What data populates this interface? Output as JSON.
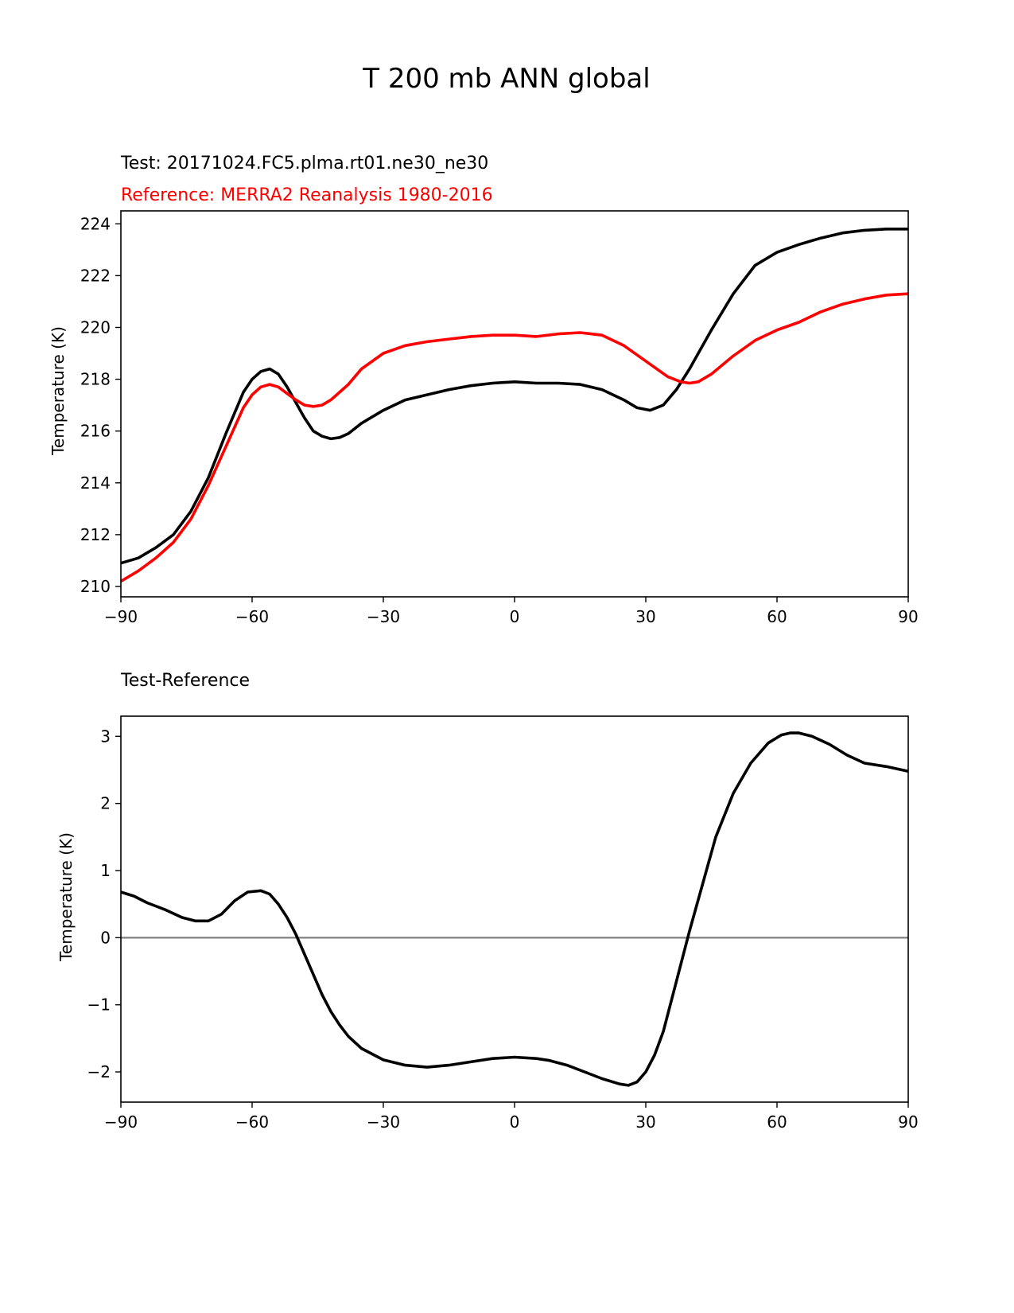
{
  "figure": {
    "suptitle": "T 200 mb ANN global"
  },
  "colors": {
    "test": "#000000",
    "reference": "#ff0000",
    "zero_line": "#808080"
  },
  "chart_data": [
    {
      "type": "line",
      "title_test": "Test: 20171024.FC5.plma.rt01.ne30_ne30",
      "title_reference": "Reference: MERRA2 Reanalysis 1980-2016",
      "xlabel": "",
      "ylabel": "Temperature (K)",
      "xlim": [
        -90,
        90
      ],
      "ylim": [
        209.6,
        224.5
      ],
      "xticks": [
        -90,
        -60,
        -30,
        0,
        30,
        60,
        90
      ],
      "xtick_labels": [
        "−90",
        "−60",
        "−30",
        "0",
        "30",
        "60",
        "90"
      ],
      "yticks": [
        210,
        212,
        214,
        216,
        218,
        220,
        222,
        224
      ],
      "ytick_labels": [
        "210",
        "212",
        "214",
        "216",
        "218",
        "220",
        "222",
        "224"
      ],
      "series": [
        {
          "name": "Test",
          "color": "#000000",
          "x": [
            -90,
            -86,
            -82,
            -78,
            -74,
            -70,
            -66,
            -62,
            -60,
            -58,
            -56,
            -54,
            -52,
            -50,
            -48,
            -46,
            -44,
            -42,
            -40,
            -38,
            -35,
            -30,
            -25,
            -20,
            -15,
            -10,
            -5,
            0,
            5,
            10,
            15,
            20,
            25,
            28,
            31,
            34,
            37,
            40,
            45,
            50,
            55,
            60,
            65,
            70,
            75,
            80,
            85,
            90
          ],
          "values": [
            210.9,
            211.1,
            211.5,
            212.0,
            212.9,
            214.2,
            215.9,
            217.5,
            218.0,
            218.3,
            218.4,
            218.2,
            217.7,
            217.1,
            216.5,
            216.0,
            215.8,
            215.7,
            215.75,
            215.9,
            216.3,
            216.8,
            217.2,
            217.4,
            217.6,
            217.75,
            217.85,
            217.9,
            217.85,
            217.85,
            217.8,
            217.6,
            217.2,
            216.9,
            216.8,
            217.0,
            217.6,
            218.4,
            219.9,
            221.3,
            222.4,
            222.9,
            223.2,
            223.45,
            223.65,
            223.75,
            223.8,
            223.8
          ]
        },
        {
          "name": "Reference",
          "color": "#ff0000",
          "x": [
            -90,
            -86,
            -82,
            -78,
            -74,
            -70,
            -66,
            -62,
            -60,
            -58,
            -56,
            -54,
            -52,
            -50,
            -48,
            -46,
            -44,
            -42,
            -40,
            -38,
            -35,
            -30,
            -25,
            -20,
            -15,
            -10,
            -5,
            0,
            5,
            10,
            15,
            20,
            25,
            30,
            35,
            38,
            40,
            42,
            45,
            50,
            55,
            60,
            65,
            70,
            75,
            80,
            85,
            90
          ],
          "values": [
            210.2,
            210.6,
            211.1,
            211.7,
            212.6,
            213.9,
            215.4,
            216.9,
            217.4,
            217.7,
            217.8,
            217.7,
            217.45,
            217.2,
            217.0,
            216.95,
            217.0,
            217.2,
            217.5,
            217.8,
            218.4,
            219.0,
            219.3,
            219.45,
            219.55,
            219.65,
            219.7,
            219.7,
            219.65,
            219.75,
            219.8,
            219.7,
            219.3,
            218.7,
            218.1,
            217.9,
            217.85,
            217.9,
            218.2,
            218.9,
            219.5,
            219.9,
            220.2,
            220.6,
            220.9,
            221.1,
            221.25,
            221.3
          ]
        }
      ]
    },
    {
      "type": "line",
      "title": "Test-Reference",
      "xlabel": "",
      "ylabel": "Temperature (K)",
      "xlim": [
        -90,
        90
      ],
      "ylim": [
        -2.45,
        3.3
      ],
      "zero_line": true,
      "xticks": [
        -90,
        -60,
        -30,
        0,
        30,
        60,
        90
      ],
      "xtick_labels": [
        "−90",
        "−60",
        "−30",
        "0",
        "30",
        "60",
        "90"
      ],
      "yticks": [
        -2,
        -1,
        0,
        1,
        2,
        3
      ],
      "ytick_labels": [
        "−2",
        "−1",
        "0",
        "1",
        "2",
        "3"
      ],
      "series": [
        {
          "name": "Test-Reference",
          "color": "#000000",
          "x": [
            -90,
            -87,
            -84,
            -80,
            -76,
            -73,
            -70,
            -67,
            -64,
            -61,
            -58,
            -56,
            -54,
            -52,
            -50,
            -48,
            -46,
            -44,
            -42,
            -40,
            -38,
            -35,
            -30,
            -25,
            -20,
            -15,
            -10,
            -5,
            0,
            5,
            8,
            12,
            16,
            20,
            24,
            26,
            28,
            30,
            32,
            34,
            36,
            38,
            40,
            43,
            46,
            50,
            54,
            58,
            61,
            63,
            65,
            68,
            72,
            76,
            80,
            85,
            90
          ],
          "values": [
            0.68,
            0.62,
            0.52,
            0.42,
            0.3,
            0.25,
            0.25,
            0.35,
            0.55,
            0.68,
            0.7,
            0.65,
            0.5,
            0.3,
            0.05,
            -0.25,
            -0.55,
            -0.85,
            -1.1,
            -1.3,
            -1.47,
            -1.65,
            -1.82,
            -1.9,
            -1.93,
            -1.9,
            -1.85,
            -1.8,
            -1.78,
            -1.8,
            -1.83,
            -1.9,
            -2.0,
            -2.1,
            -2.18,
            -2.2,
            -2.15,
            -2.0,
            -1.75,
            -1.4,
            -0.9,
            -0.4,
            0.1,
            0.8,
            1.5,
            2.15,
            2.6,
            2.9,
            3.02,
            3.05,
            3.05,
            3.0,
            2.88,
            2.72,
            2.6,
            2.55,
            2.48
          ]
        }
      ]
    }
  ]
}
